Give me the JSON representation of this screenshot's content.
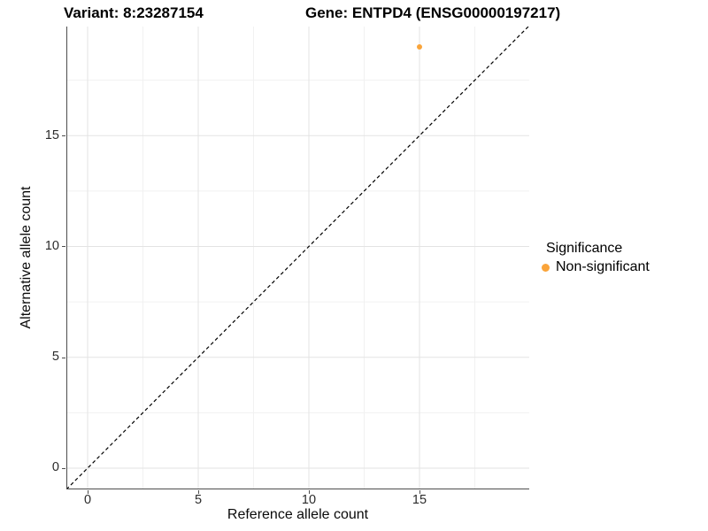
{
  "page": {
    "background": "#ffffff"
  },
  "chart_data": {
    "type": "scatter",
    "titles": {
      "left": "Variant: 8:23287154",
      "right": "Gene: ENTPD4 (ENSG00000197217)"
    },
    "xlabel": "Reference allele count",
    "ylabel": "Alternative allele count",
    "xlim": [
      -0.96,
      19.96
    ],
    "ylim": [
      -0.96,
      19.92
    ],
    "x_major_ticks": [
      0,
      5,
      10,
      15
    ],
    "x_minor_ticks": [
      2.5,
      7.5,
      12.5,
      17.5
    ],
    "y_major_ticks": [
      0,
      5,
      10,
      15
    ],
    "y_minor_ticks": [
      2.5,
      7.5,
      12.5,
      17.5
    ],
    "grid": true,
    "identity_line": {
      "present": true,
      "style": "dashed",
      "color": "#000000"
    },
    "points": [
      {
        "x": 15,
        "y": 19,
        "series": "Non-significant"
      }
    ],
    "legend": {
      "title": "Significance",
      "position": "right",
      "items": [
        {
          "label": "Non-significant",
          "color": "#FAA43A"
        }
      ]
    },
    "palette": {
      "point": "#FAA43A",
      "axis_line": "#4d4d4d",
      "tick_mark": "#4d4d4d",
      "tick_label": "#2b2b2b",
      "grid_major": "#e3e3e3",
      "grid_minor": "#f1f1f1"
    }
  }
}
